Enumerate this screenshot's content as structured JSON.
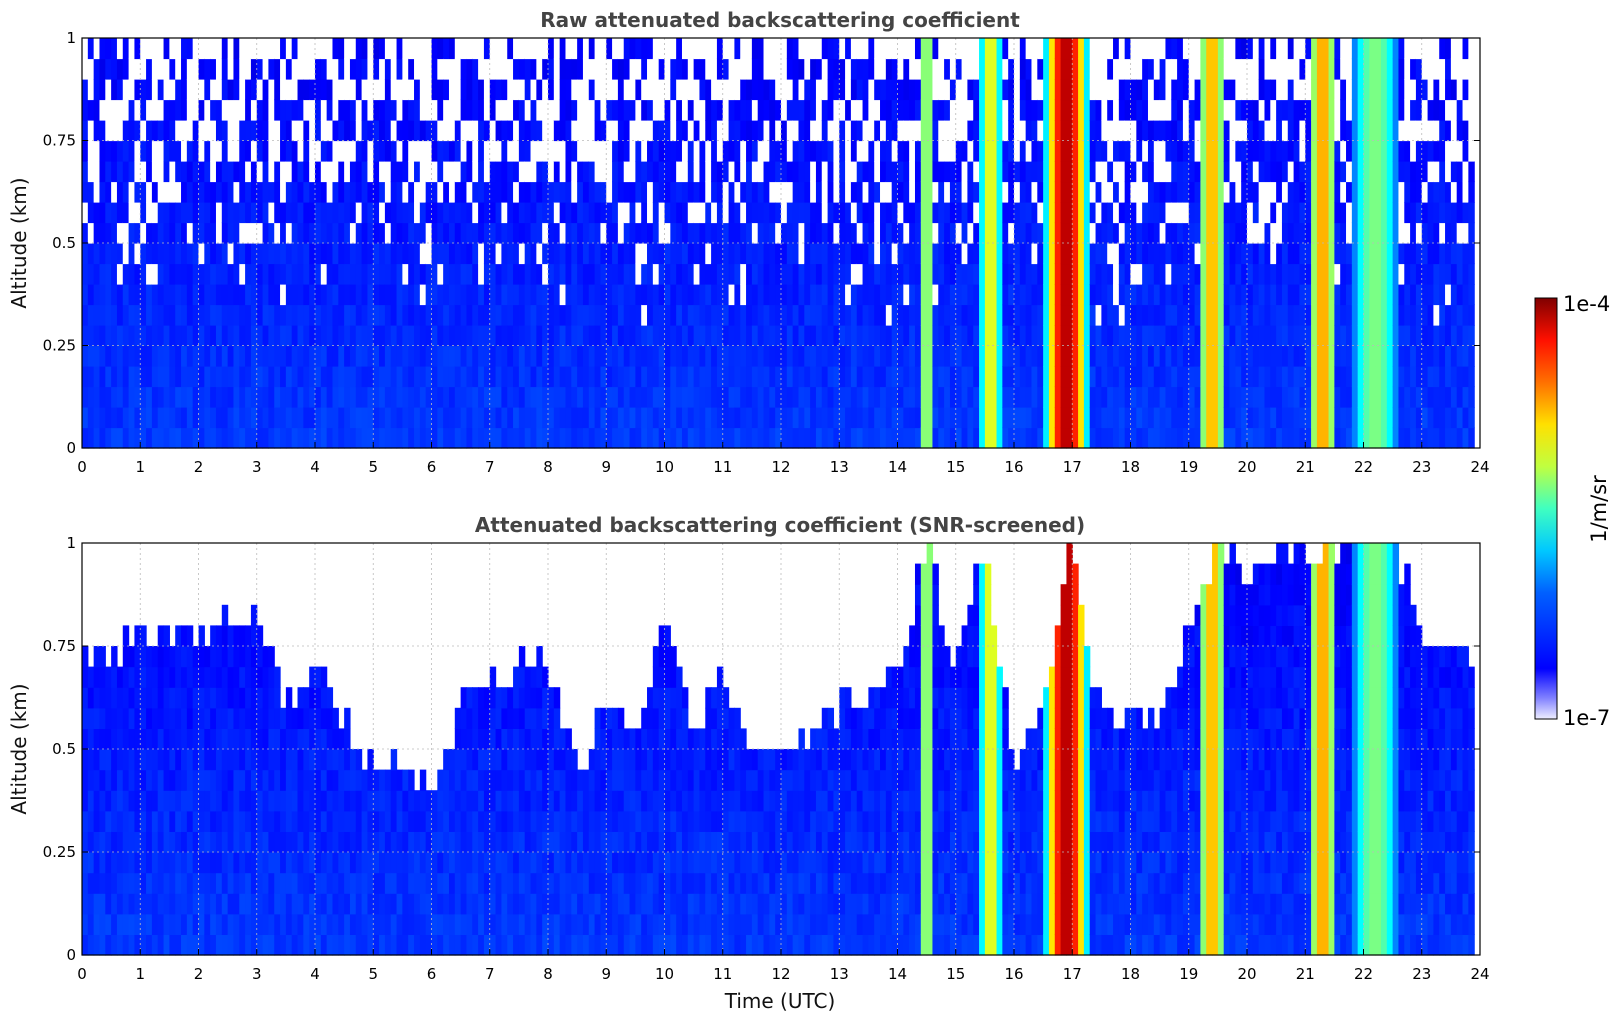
{
  "chart_data": [
    {
      "type": "heatmap",
      "title": "Raw attenuated backscattering coefficient",
      "xlabel": "",
      "ylabel": "Altitude (km)",
      "xlim": [
        0,
        24
      ],
      "ylim": [
        0,
        1
      ],
      "x_ticks": [
        "0",
        "1",
        "2",
        "3",
        "4",
        "5",
        "6",
        "7",
        "8",
        "9",
        "10",
        "11",
        "12",
        "13",
        "14",
        "15",
        "16",
        "17",
        "18",
        "19",
        "20",
        "21",
        "22",
        "23",
        "24"
      ],
      "y_ticks": [
        "0",
        "0.25",
        "0.5",
        "0.75",
        "1"
      ],
      "grid": true,
      "screened": false,
      "colorscale": "jet",
      "background_level": 0.18,
      "plumes": [
        {
          "center": 14.5,
          "width": 0.15,
          "level": 0.55
        },
        {
          "center": 15.6,
          "width": 0.2,
          "level": 0.62
        },
        {
          "center": 16.9,
          "width": 0.4,
          "level": 0.95
        },
        {
          "center": 19.4,
          "width": 0.25,
          "level": 0.7
        },
        {
          "center": 21.3,
          "width": 0.25,
          "level": 0.72
        },
        {
          "center": 22.2,
          "width": 0.4,
          "level": 0.5
        }
      ]
    },
    {
      "type": "heatmap",
      "title": "Attenuated backscattering coefficient (SNR-screened)",
      "xlabel": "Time (UTC)",
      "ylabel": "Altitude (km)",
      "xlim": [
        0,
        24
      ],
      "ylim": [
        0,
        1
      ],
      "x_ticks": [
        "0",
        "1",
        "2",
        "3",
        "4",
        "5",
        "6",
        "7",
        "8",
        "9",
        "10",
        "11",
        "12",
        "13",
        "14",
        "15",
        "16",
        "17",
        "18",
        "19",
        "20",
        "21",
        "22",
        "23",
        "24"
      ],
      "y_ticks": [
        "0",
        "0.25",
        "0.5",
        "0.75",
        "1"
      ],
      "grid": true,
      "screened": true,
      "colorscale": "jet",
      "background_level": 0.18,
      "screen_top_km": {
        "t": [
          0,
          0.5,
          1,
          1.5,
          2,
          2.5,
          3,
          3.5,
          4,
          4.5,
          5,
          5.5,
          6,
          6.5,
          7,
          7.5,
          8,
          8.5,
          9,
          9.5,
          10,
          10.5,
          11,
          11.5,
          12,
          12.5,
          13,
          13.5,
          14,
          14.5,
          15,
          15.5,
          16,
          16.5,
          17,
          17.5,
          18,
          18.5,
          19,
          19.5,
          20,
          20.5,
          21,
          21.5,
          22,
          22.5,
          23,
          23.5,
          24
        ],
        "h": [
          0.75,
          0.72,
          0.78,
          0.8,
          0.76,
          0.8,
          0.85,
          0.62,
          0.7,
          0.55,
          0.48,
          0.45,
          0.4,
          0.62,
          0.65,
          0.7,
          0.72,
          0.45,
          0.6,
          0.55,
          0.8,
          0.55,
          0.7,
          0.5,
          0.45,
          0.55,
          0.6,
          0.6,
          0.7,
          1.0,
          0.7,
          1.0,
          0.45,
          0.6,
          1.0,
          0.58,
          0.6,
          0.55,
          0.8,
          1.0,
          0.9,
          1.0,
          1.0,
          1.0,
          1.0,
          1.0,
          0.8,
          0.75,
          0.7
        ]
      },
      "plumes": [
        {
          "center": 14.5,
          "width": 0.15,
          "level": 0.55
        },
        {
          "center": 15.6,
          "width": 0.2,
          "level": 0.62
        },
        {
          "center": 16.9,
          "width": 0.4,
          "level": 0.95
        },
        {
          "center": 19.4,
          "width": 0.25,
          "level": 0.7
        },
        {
          "center": 21.3,
          "width": 0.25,
          "level": 0.72
        },
        {
          "center": 22.2,
          "width": 0.4,
          "level": 0.5
        }
      ]
    }
  ],
  "colorbar": {
    "label": "1/m/sr",
    "max_label": "1e-4",
    "min_label": "1e-7"
  }
}
